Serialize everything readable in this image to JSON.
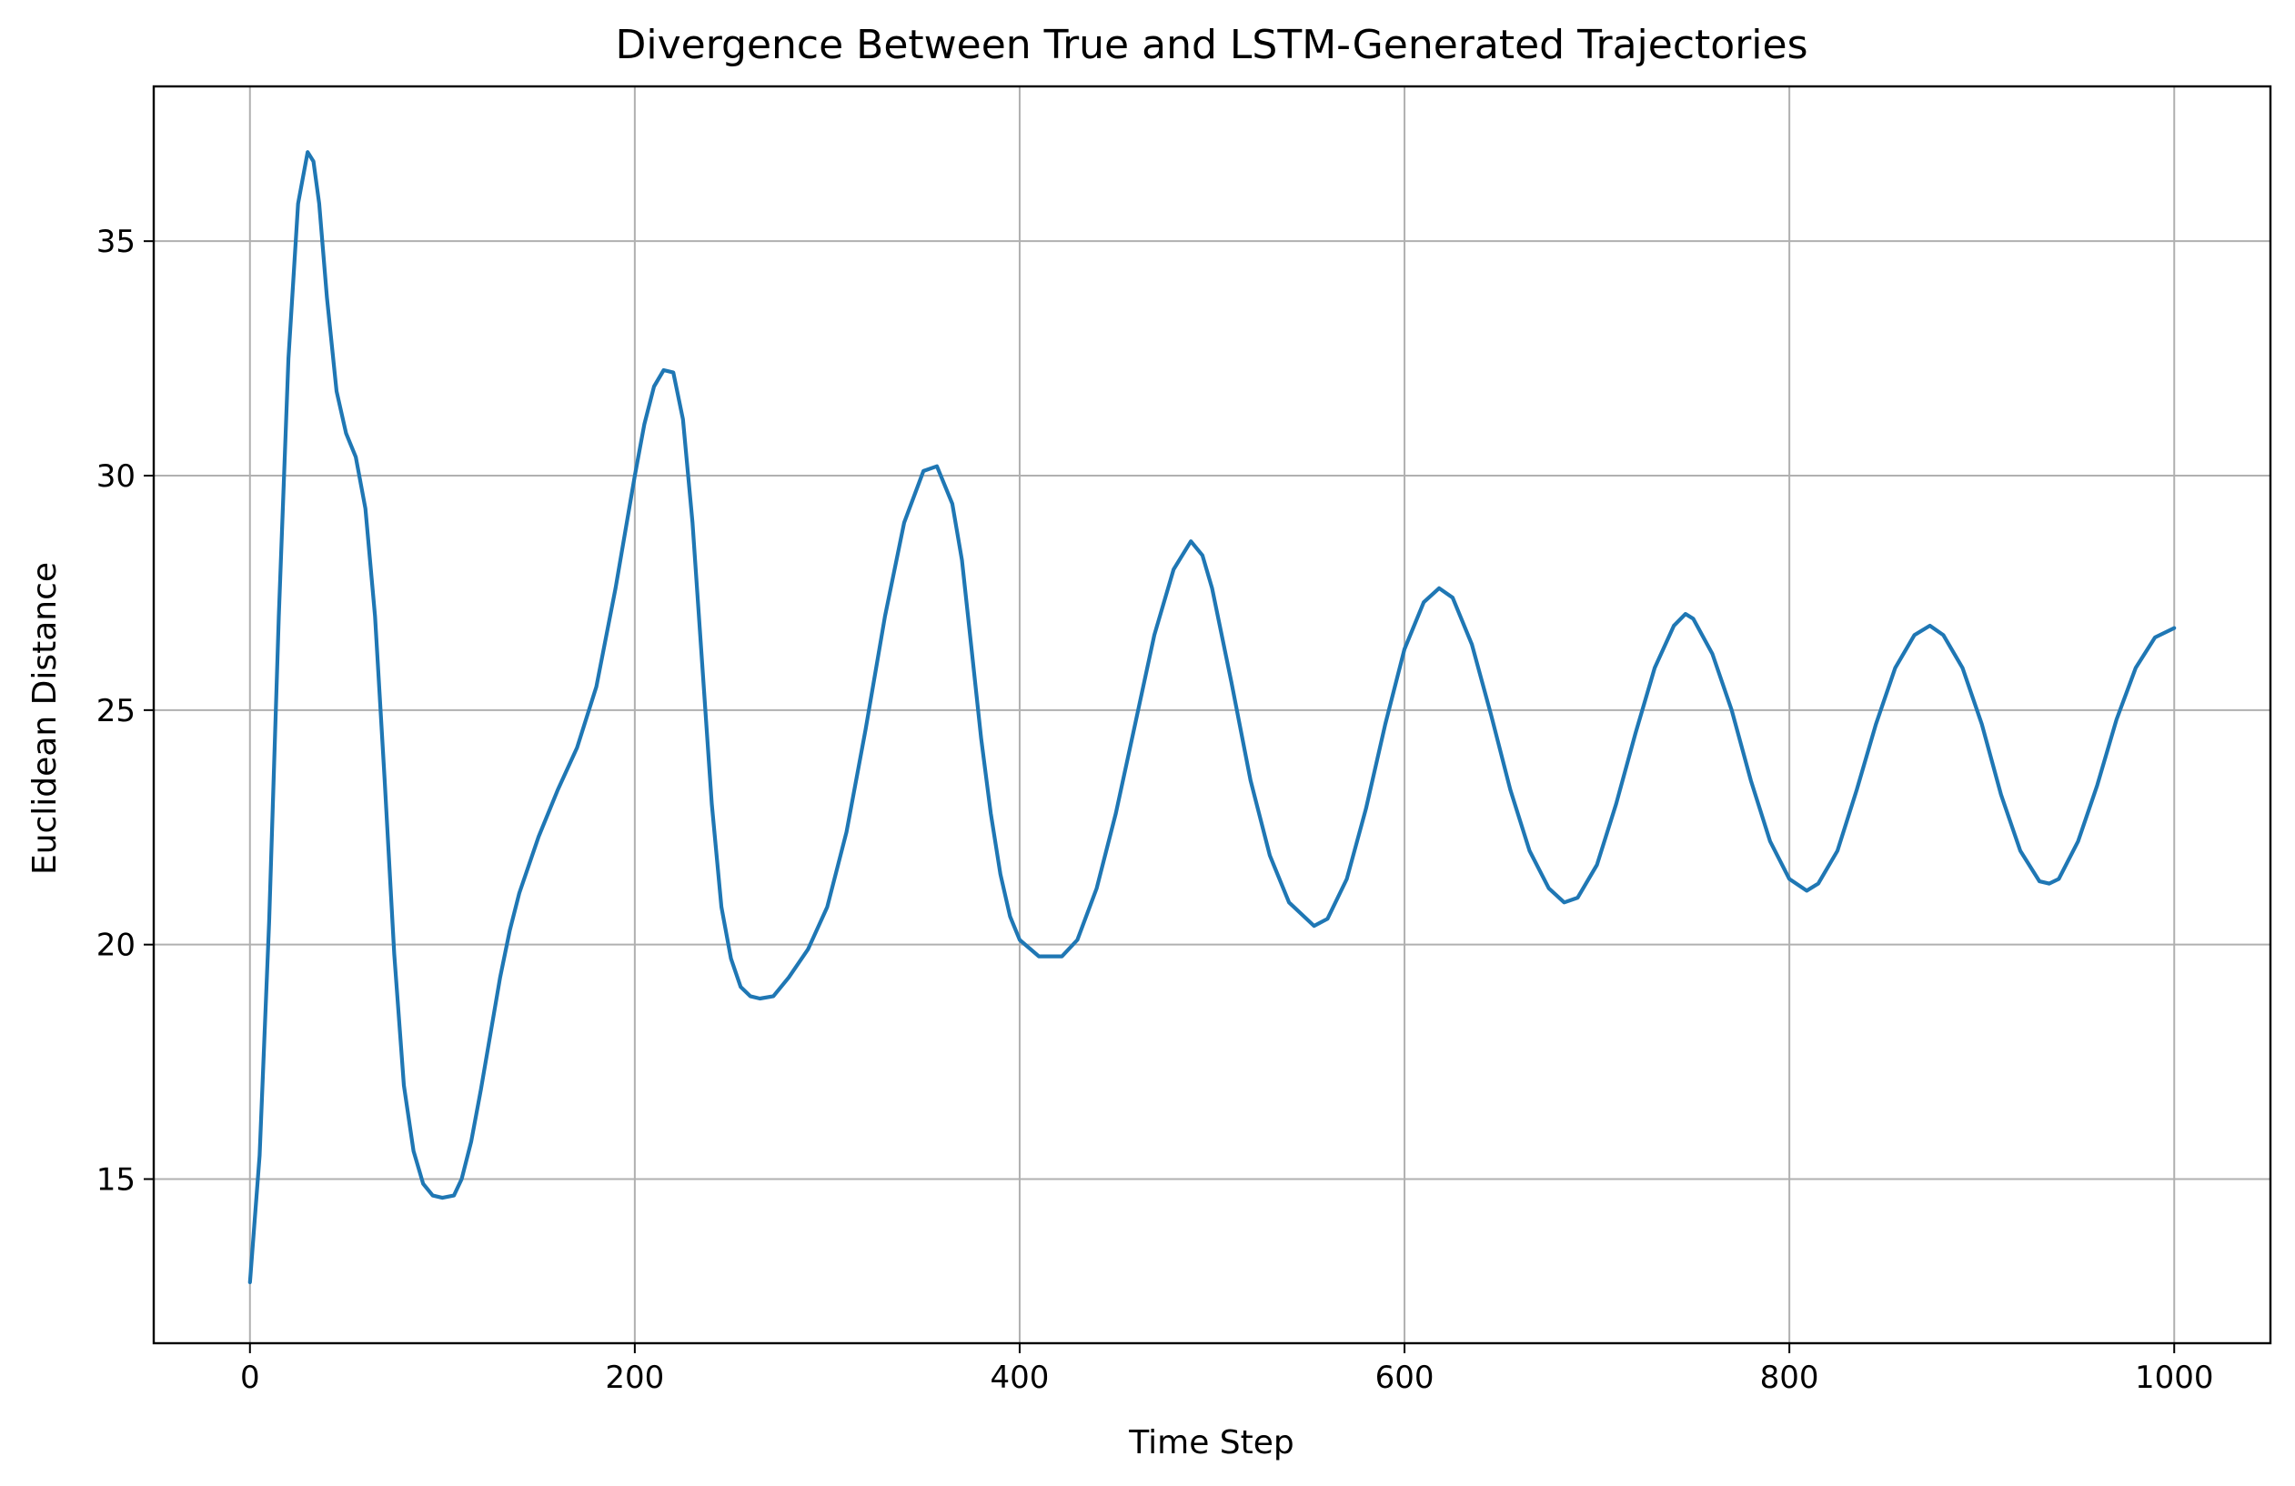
{
  "chart_data": {
    "type": "line",
    "title": "Divergence Between True and LSTM-Generated Trajectories",
    "xlabel": "Time Step",
    "ylabel": "Euclidean Distance",
    "xlim": [
      -50,
      1050
    ],
    "ylim": [
      11.5,
      38.3
    ],
    "xticks": [
      0,
      200,
      400,
      600,
      800,
      1000
    ],
    "yticks": [
      15,
      20,
      25,
      30,
      35
    ],
    "grid": true,
    "colors": {
      "line": "#1f77b4",
      "grid": "#b0b0b0",
      "axes": "#000000"
    },
    "series": [
      {
        "x": [
          0,
          5,
          10,
          15,
          20,
          25,
          30,
          33,
          36,
          40,
          45,
          50,
          55,
          60,
          65,
          70,
          75,
          80,
          85,
          90,
          95,
          100,
          106,
          110,
          115,
          120,
          125,
          130,
          135,
          140,
          150,
          160,
          170,
          180,
          190,
          200,
          205,
          210,
          215,
          220,
          225,
          230,
          235,
          240,
          245,
          250,
          255,
          260,
          265,
          272,
          280,
          290,
          300,
          310,
          320,
          330,
          340,
          350,
          357,
          365,
          370,
          375,
          380,
          385,
          390,
          395,
          400,
          410,
          422,
          430,
          440,
          450,
          460,
          470,
          480,
          489,
          495,
          500,
          510,
          520,
          530,
          540,
          553,
          560,
          570,
          580,
          590,
          600,
          610,
          618,
          625,
          635,
          645,
          655,
          665,
          675,
          683,
          690,
          700,
          710,
          720,
          730,
          740,
          746,
          750,
          760,
          770,
          780,
          790,
          800,
          809,
          815,
          825,
          835,
          845,
          855,
          865,
          873,
          880,
          890,
          900,
          910,
          920,
          930,
          935,
          940,
          950,
          960,
          970,
          980,
          990,
          1000
        ],
        "values": [
          12.8,
          15.5,
          20.5,
          27.0,
          32.5,
          35.8,
          36.9,
          36.7,
          35.8,
          33.8,
          31.8,
          30.9,
          30.4,
          29.3,
          27.0,
          23.5,
          19.8,
          17.0,
          15.6,
          14.9,
          14.65,
          14.6,
          14.65,
          15.0,
          15.8,
          16.9,
          18.1,
          19.3,
          20.3,
          21.1,
          22.3,
          23.3,
          24.2,
          25.5,
          27.6,
          30.0,
          31.1,
          31.9,
          32.25,
          32.2,
          31.2,
          29.0,
          26.0,
          23.0,
          20.8,
          19.7,
          19.1,
          18.9,
          18.85,
          18.9,
          19.3,
          19.9,
          20.8,
          22.4,
          24.6,
          27.0,
          29.0,
          30.1,
          30.2,
          29.4,
          28.2,
          26.3,
          24.4,
          22.8,
          21.5,
          20.6,
          20.1,
          19.75,
          19.75,
          20.1,
          21.2,
          22.8,
          24.7,
          26.6,
          28.0,
          28.6,
          28.3,
          27.6,
          25.6,
          23.5,
          21.9,
          20.9,
          20.4,
          20.55,
          21.4,
          22.9,
          24.7,
          26.3,
          27.3,
          27.6,
          27.4,
          26.4,
          24.9,
          23.3,
          22.0,
          21.2,
          20.9,
          21.0,
          21.7,
          23.0,
          24.5,
          25.9,
          26.8,
          27.05,
          26.95,
          26.2,
          25.0,
          23.5,
          22.2,
          21.4,
          21.15,
          21.3,
          22.0,
          23.3,
          24.7,
          25.9,
          26.6,
          26.8,
          26.6,
          25.9,
          24.7,
          23.2,
          22.0,
          21.35,
          21.3,
          21.4,
          22.2,
          23.4,
          24.8,
          25.9,
          26.55,
          26.75
        ]
      }
    ]
  }
}
